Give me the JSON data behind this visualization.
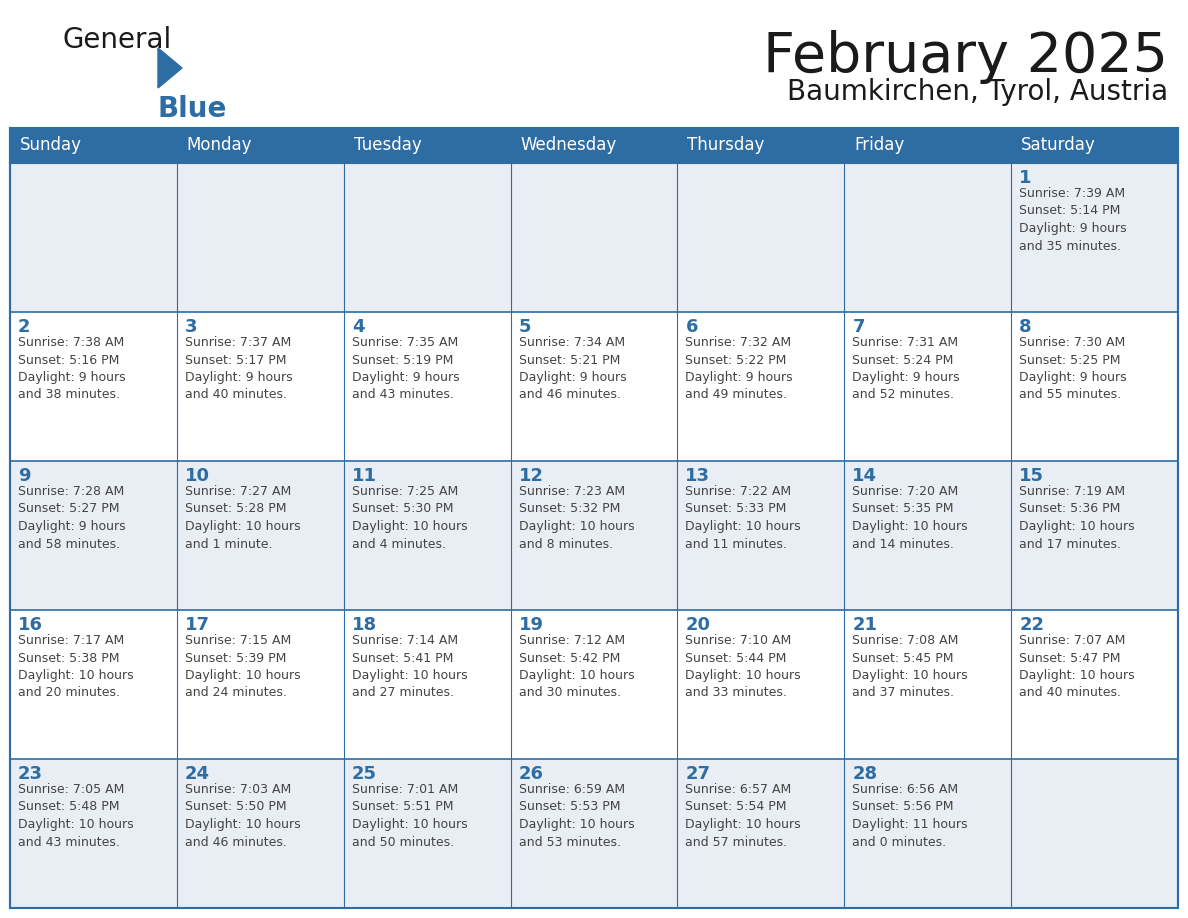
{
  "title": "February 2025",
  "subtitle": "Baumkirchen, Tyrol, Austria",
  "header_color": "#2E6DA4",
  "header_text_color": "#FFFFFF",
  "background_color": "#FFFFFF",
  "cell_bg_light": "#E8EEF4",
  "cell_bg_white": "#FFFFFF",
  "border_color": "#2E6DA4",
  "text_color": "#444444",
  "day_number_color": "#2E6DA4",
  "logo_color_general": "#1a1a1a",
  "logo_color_blue": "#2E6DA4",
  "logo_triangle_color": "#2E6DA4",
  "days_of_week": [
    "Sunday",
    "Monday",
    "Tuesday",
    "Wednesday",
    "Thursday",
    "Friday",
    "Saturday"
  ],
  "weeks": [
    [
      {
        "day": null,
        "info": null
      },
      {
        "day": null,
        "info": null
      },
      {
        "day": null,
        "info": null
      },
      {
        "day": null,
        "info": null
      },
      {
        "day": null,
        "info": null
      },
      {
        "day": null,
        "info": null
      },
      {
        "day": "1",
        "info": "Sunrise: 7:39 AM\nSunset: 5:14 PM\nDaylight: 9 hours\nand 35 minutes."
      }
    ],
    [
      {
        "day": "2",
        "info": "Sunrise: 7:38 AM\nSunset: 5:16 PM\nDaylight: 9 hours\nand 38 minutes."
      },
      {
        "day": "3",
        "info": "Sunrise: 7:37 AM\nSunset: 5:17 PM\nDaylight: 9 hours\nand 40 minutes."
      },
      {
        "day": "4",
        "info": "Sunrise: 7:35 AM\nSunset: 5:19 PM\nDaylight: 9 hours\nand 43 minutes."
      },
      {
        "day": "5",
        "info": "Sunrise: 7:34 AM\nSunset: 5:21 PM\nDaylight: 9 hours\nand 46 minutes."
      },
      {
        "day": "6",
        "info": "Sunrise: 7:32 AM\nSunset: 5:22 PM\nDaylight: 9 hours\nand 49 minutes."
      },
      {
        "day": "7",
        "info": "Sunrise: 7:31 AM\nSunset: 5:24 PM\nDaylight: 9 hours\nand 52 minutes."
      },
      {
        "day": "8",
        "info": "Sunrise: 7:30 AM\nSunset: 5:25 PM\nDaylight: 9 hours\nand 55 minutes."
      }
    ],
    [
      {
        "day": "9",
        "info": "Sunrise: 7:28 AM\nSunset: 5:27 PM\nDaylight: 9 hours\nand 58 minutes."
      },
      {
        "day": "10",
        "info": "Sunrise: 7:27 AM\nSunset: 5:28 PM\nDaylight: 10 hours\nand 1 minute."
      },
      {
        "day": "11",
        "info": "Sunrise: 7:25 AM\nSunset: 5:30 PM\nDaylight: 10 hours\nand 4 minutes."
      },
      {
        "day": "12",
        "info": "Sunrise: 7:23 AM\nSunset: 5:32 PM\nDaylight: 10 hours\nand 8 minutes."
      },
      {
        "day": "13",
        "info": "Sunrise: 7:22 AM\nSunset: 5:33 PM\nDaylight: 10 hours\nand 11 minutes."
      },
      {
        "day": "14",
        "info": "Sunrise: 7:20 AM\nSunset: 5:35 PM\nDaylight: 10 hours\nand 14 minutes."
      },
      {
        "day": "15",
        "info": "Sunrise: 7:19 AM\nSunset: 5:36 PM\nDaylight: 10 hours\nand 17 minutes."
      }
    ],
    [
      {
        "day": "16",
        "info": "Sunrise: 7:17 AM\nSunset: 5:38 PM\nDaylight: 10 hours\nand 20 minutes."
      },
      {
        "day": "17",
        "info": "Sunrise: 7:15 AM\nSunset: 5:39 PM\nDaylight: 10 hours\nand 24 minutes."
      },
      {
        "day": "18",
        "info": "Sunrise: 7:14 AM\nSunset: 5:41 PM\nDaylight: 10 hours\nand 27 minutes."
      },
      {
        "day": "19",
        "info": "Sunrise: 7:12 AM\nSunset: 5:42 PM\nDaylight: 10 hours\nand 30 minutes."
      },
      {
        "day": "20",
        "info": "Sunrise: 7:10 AM\nSunset: 5:44 PM\nDaylight: 10 hours\nand 33 minutes."
      },
      {
        "day": "21",
        "info": "Sunrise: 7:08 AM\nSunset: 5:45 PM\nDaylight: 10 hours\nand 37 minutes."
      },
      {
        "day": "22",
        "info": "Sunrise: 7:07 AM\nSunset: 5:47 PM\nDaylight: 10 hours\nand 40 minutes."
      }
    ],
    [
      {
        "day": "23",
        "info": "Sunrise: 7:05 AM\nSunset: 5:48 PM\nDaylight: 10 hours\nand 43 minutes."
      },
      {
        "day": "24",
        "info": "Sunrise: 7:03 AM\nSunset: 5:50 PM\nDaylight: 10 hours\nand 46 minutes."
      },
      {
        "day": "25",
        "info": "Sunrise: 7:01 AM\nSunset: 5:51 PM\nDaylight: 10 hours\nand 50 minutes."
      },
      {
        "day": "26",
        "info": "Sunrise: 6:59 AM\nSunset: 5:53 PM\nDaylight: 10 hours\nand 53 minutes."
      },
      {
        "day": "27",
        "info": "Sunrise: 6:57 AM\nSunset: 5:54 PM\nDaylight: 10 hours\nand 57 minutes."
      },
      {
        "day": "28",
        "info": "Sunrise: 6:56 AM\nSunset: 5:56 PM\nDaylight: 11 hours\nand 0 minutes."
      },
      {
        "day": null,
        "info": null
      }
    ]
  ]
}
